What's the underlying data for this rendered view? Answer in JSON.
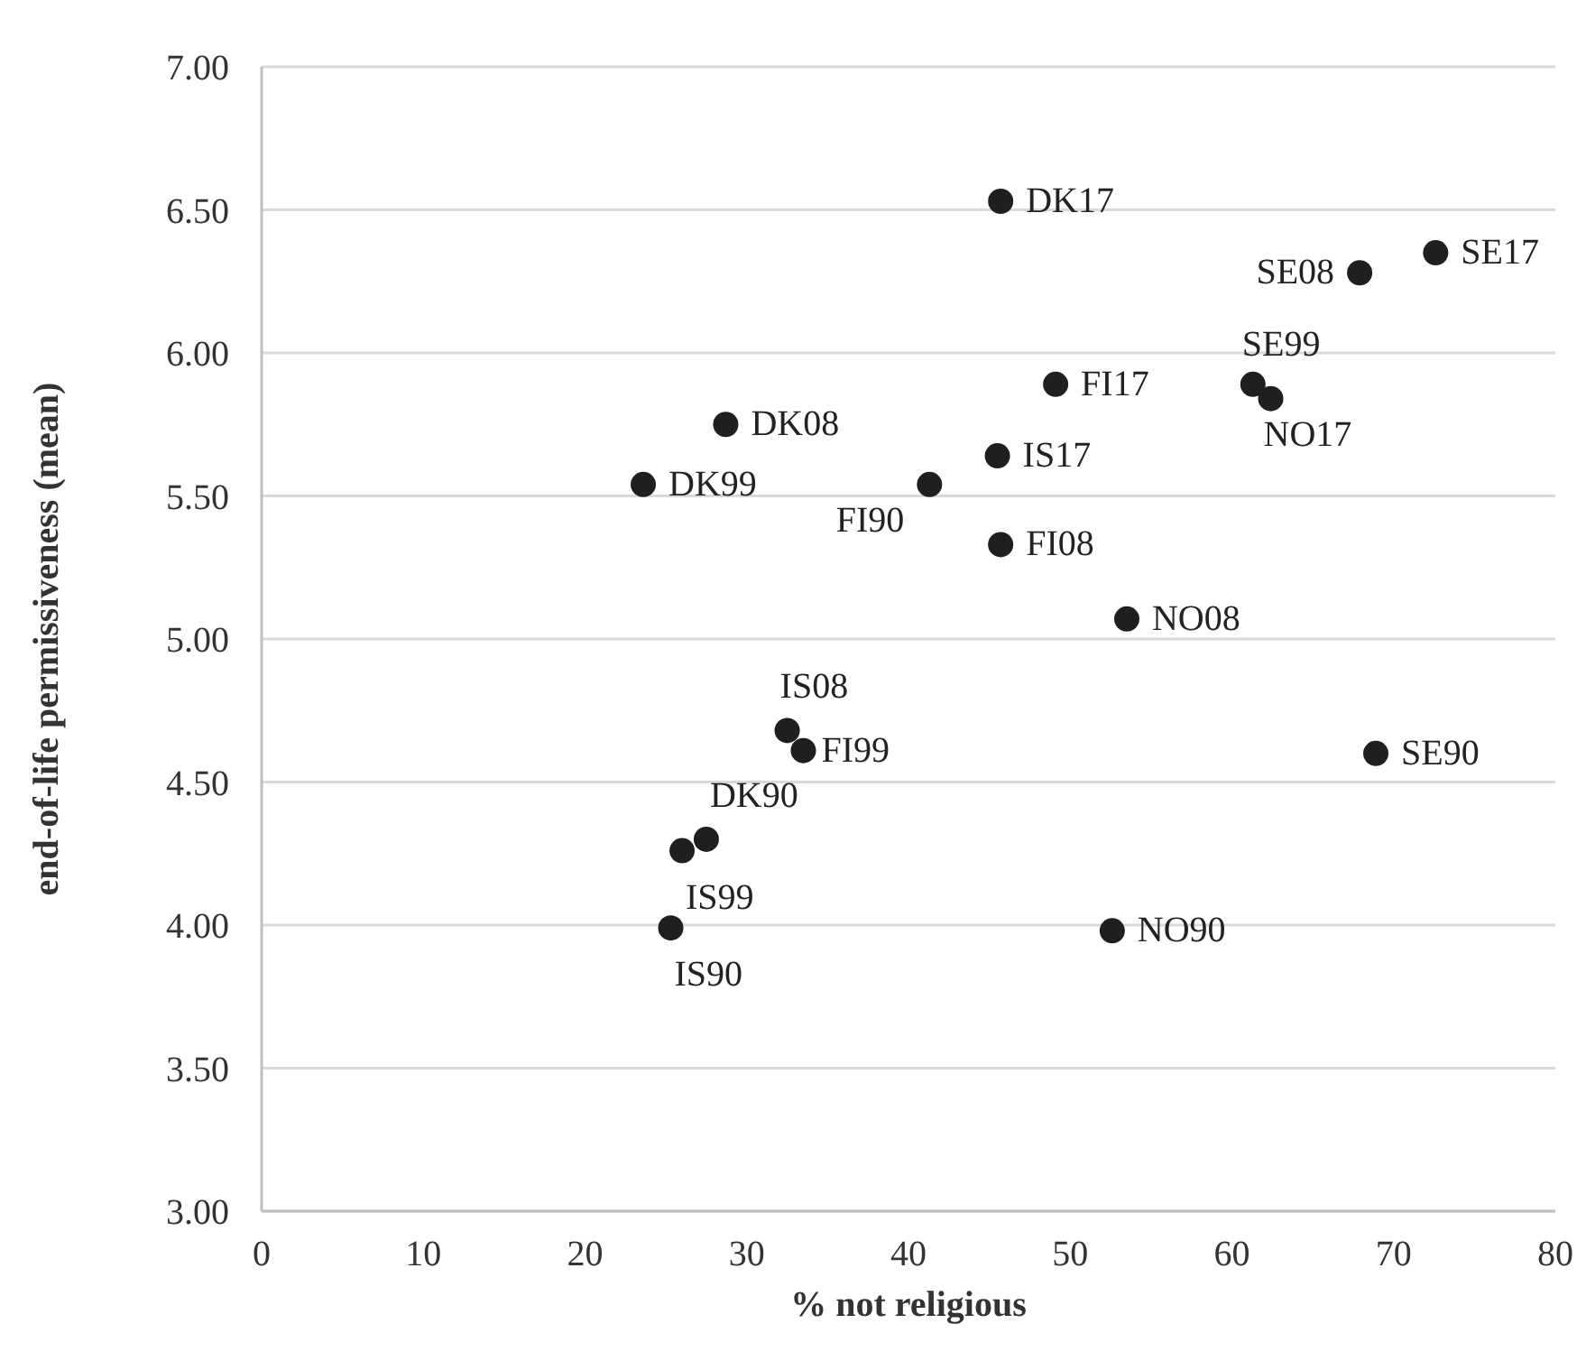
{
  "chart_data": {
    "type": "scatter",
    "xlabel": "% not religious",
    "ylabel": "end-of-life permissiveness (mean)",
    "x": [
      45.7,
      72.6,
      67.9,
      61.3,
      62.4,
      49.1,
      28.7,
      45.5,
      23.6,
      41.3,
      45.7,
      53.5,
      32.5,
      33.5,
      68.9,
      27.5,
      26.0,
      25.3,
      52.6
    ],
    "values": [
      6.53,
      6.35,
      6.28,
      5.89,
      5.84,
      5.89,
      5.75,
      5.64,
      5.54,
      5.54,
      5.33,
      5.07,
      4.68,
      4.61,
      4.6,
      4.3,
      4.26,
      3.99,
      3.98
    ],
    "value_labels": [
      "DK17",
      "SE17",
      "SE08",
      "SE99",
      "NO17",
      "FI17",
      "DK08",
      "IS17",
      "DK99",
      "FI90",
      "FI08",
      "NO08",
      "IS08",
      "FI99",
      "SE90",
      "DK90",
      "IS99",
      "IS90",
      "NO90"
    ],
    "color": "#1f1f1f",
    "marker": "circle",
    "xlim": [
      0,
      80
    ],
    "xticks": [
      0,
      10,
      20,
      30,
      40,
      50,
      60,
      70,
      80
    ],
    "ylim": [
      3,
      7
    ],
    "yticks": [
      {
        "value": 3,
        "label": "3.00"
      },
      {
        "value": 3.5,
        "label": "3.50"
      },
      {
        "value": 4,
        "label": "4.00"
      },
      {
        "value": 4.5,
        "label": "4.50"
      },
      {
        "value": 5,
        "label": "5.00"
      },
      {
        "value": 5.5,
        "label": "5.50"
      },
      {
        "value": 6,
        "label": "6.00"
      },
      {
        "value": 6.5,
        "label": "6.50"
      },
      {
        "value": 7,
        "label": "7.00"
      }
    ],
    "grid": "y"
  }
}
